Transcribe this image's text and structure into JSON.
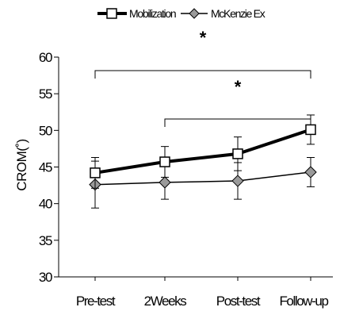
{
  "chart_data": {
    "type": "line",
    "categories": [
      "Pre-test",
      "2Weeks",
      "Post-test",
      "Follow-up"
    ],
    "ylabel": "CROM(˚)",
    "ylim": [
      30,
      60
    ],
    "yticks": [
      30,
      35,
      40,
      45,
      50,
      55,
      60
    ],
    "grid": false,
    "legend": "top",
    "series": [
      {
        "name": "Mobilization",
        "marker": "square",
        "values": [
          44.2,
          45.7,
          46.8,
          50.1
        ],
        "errors": [
          2.1,
          2.1,
          2.3,
          2.0
        ]
      },
      {
        "name": "McKenzie Ex",
        "marker": "diamond",
        "values": [
          42.6,
          42.9,
          43.1,
          44.3
        ],
        "errors": [
          3.2,
          2.3,
          2.5,
          2.0
        ]
      }
    ],
    "annotations": [
      {
        "text": "*",
        "from": "Pre-test",
        "to": "Follow-up"
      },
      {
        "text": "*",
        "from": "2Weeks",
        "to": "Follow-up"
      }
    ]
  }
}
